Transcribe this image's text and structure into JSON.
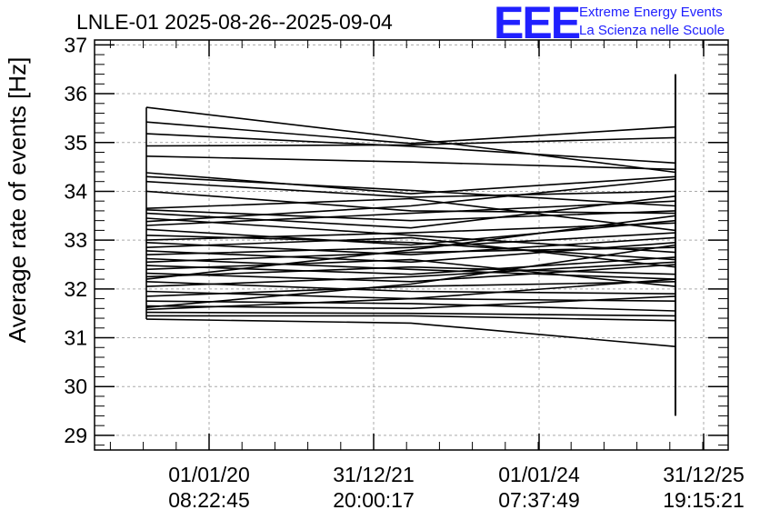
{
  "chart_data": {
    "type": "line",
    "title": "LNLE-01 2025-08-26--2025-09-04",
    "ylabel": "Average rate of events [Hz]",
    "xlabel": "",
    "ylim": [
      28.7,
      37.1
    ],
    "y_ticks": [
      29,
      30,
      31,
      32,
      33,
      34,
      35,
      36,
      37
    ],
    "x_ticks": [
      {
        "line1": "01/01/20",
        "line2": "08:22:45"
      },
      {
        "line1": "31/12/21",
        "line2": "20:00:17"
      },
      {
        "line1": "01/01/24",
        "line2": "07:37:49"
      },
      {
        "line1": "31/12/25",
        "line2": "19:15:21"
      }
    ],
    "grid": true,
    "line_color": "#000000",
    "segments": [
      [
        35.72,
        35.08,
        34.39
      ],
      [
        35.42,
        34.98,
        35.32
      ],
      [
        35.18,
        34.92,
        34.58
      ],
      [
        34.93,
        34.95,
        35.1
      ],
      [
        34.72,
        34.6,
        34.45
      ],
      [
        34.38,
        33.95,
        34.3
      ],
      [
        34.3,
        34.02,
        33.7
      ],
      [
        34.2,
        33.88,
        34.0
      ],
      [
        34.0,
        33.6,
        33.55
      ],
      [
        33.65,
        33.85,
        33.2
      ],
      [
        33.55,
        33.25,
        33.9
      ],
      [
        33.45,
        33.1,
        32.75
      ],
      [
        33.3,
        33.55,
        33.8
      ],
      [
        33.22,
        32.9,
        33.4
      ],
      [
        33.1,
        32.95,
        32.6
      ],
      [
        33.0,
        33.15,
        33.35
      ],
      [
        32.95,
        32.7,
        33.05
      ],
      [
        32.85,
        33.05,
        32.45
      ],
      [
        32.78,
        32.55,
        32.95
      ],
      [
        32.7,
        32.85,
        33.15
      ],
      [
        32.62,
        32.4,
        32.2
      ],
      [
        32.55,
        32.75,
        32.85
      ],
      [
        32.48,
        32.3,
        32.65
      ],
      [
        32.4,
        32.6,
        32.05
      ],
      [
        32.32,
        32.15,
        32.5
      ],
      [
        32.25,
        32.45,
        32.3
      ],
      [
        32.15,
        31.95,
        31.9
      ],
      [
        32.05,
        32.25,
        32.55
      ],
      [
        31.95,
        31.8,
        31.75
      ],
      [
        31.85,
        32.05,
        32.15
      ],
      [
        31.75,
        31.7,
        31.55
      ],
      [
        31.65,
        31.6,
        31.85
      ],
      [
        31.58,
        31.8,
        32.2
      ],
      [
        31.52,
        31.5,
        31.45
      ],
      [
        31.45,
        31.45,
        31.35
      ],
      [
        31.38,
        31.3,
        30.82
      ],
      [
        33.62,
        33.4,
        33.6
      ],
      [
        33.38,
        33.7,
        34.25
      ],
      [
        32.2,
        32.8,
        33.5
      ],
      [
        31.62,
        32.1,
        32.9
      ]
    ],
    "end_bar": [
      29.4,
      36.4
    ]
  },
  "logo": {
    "acronym": "EEE",
    "line1": "Extreme Energy Events",
    "line2": "La Scienza nelle Scuole"
  }
}
